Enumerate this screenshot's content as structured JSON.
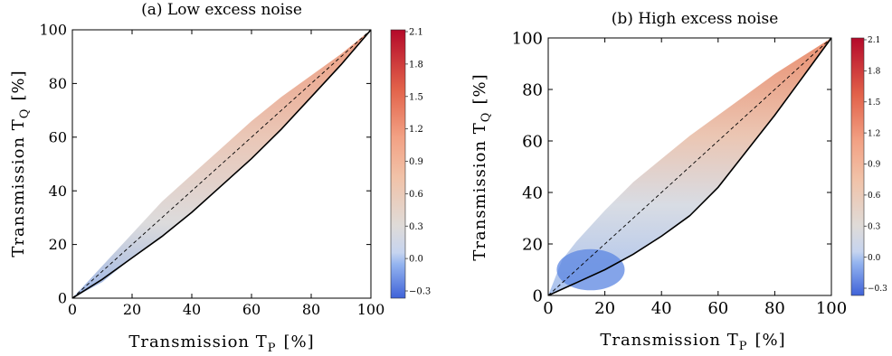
{
  "chart_data": [
    {
      "type": "heatmap",
      "title": "(a) Low excess noise",
      "xlabel": "Transmission T",
      "xlabel_sub": "P",
      "xlabel_unit": "[%]",
      "ylabel": "Transmission T",
      "ylabel_sub": "Q",
      "ylabel_unit": "[%]",
      "xlim": [
        0,
        100
      ],
      "ylim": [
        0,
        100
      ],
      "x_ticks": [
        0,
        20,
        40,
        60,
        80,
        100
      ],
      "y_ticks": [
        0,
        20,
        40,
        60,
        80,
        100
      ],
      "grid": false,
      "diagonal_dashed": [
        [
          0,
          0
        ],
        [
          100,
          100
        ]
      ],
      "boundary_curve": [
        [
          0,
          0
        ],
        [
          10,
          7
        ],
        [
          20,
          15
        ],
        [
          30,
          23
        ],
        [
          40,
          32
        ],
        [
          50,
          42
        ],
        [
          60,
          52
        ],
        [
          70,
          63
        ],
        [
          80,
          75
        ],
        [
          90,
          87
        ],
        [
          100,
          100
        ]
      ],
      "region_upper": [
        [
          0,
          0
        ],
        [
          10,
          12
        ],
        [
          20,
          24
        ],
        [
          30,
          36
        ],
        [
          40,
          46
        ],
        [
          50,
          56
        ],
        [
          60,
          66
        ],
        [
          70,
          75
        ],
        [
          80,
          83
        ],
        [
          90,
          91
        ],
        [
          100,
          100
        ]
      ],
      "region_lower": [
        [
          0,
          0
        ],
        [
          10,
          6
        ],
        [
          20,
          15
        ],
        [
          30,
          23
        ],
        [
          40,
          32
        ],
        [
          50,
          42
        ],
        [
          60,
          52
        ],
        [
          70,
          63
        ],
        [
          80,
          75
        ],
        [
          90,
          87
        ],
        [
          100,
          100
        ]
      ],
      "colorbar": {
        "ticks": [
          "2.1",
          "1.8",
          "1.5",
          "1.2",
          "0.9",
          "0.6",
          "0.3",
          "0.0",
          "−0.3"
        ],
        "range": [
          -0.3,
          2.1
        ]
      }
    },
    {
      "type": "heatmap",
      "title": "(b) High excess noise",
      "xlabel": "Transmission T",
      "xlabel_sub": "P",
      "xlabel_unit": "[%]",
      "ylabel": "Transmission T",
      "ylabel_sub": "Q",
      "ylabel_unit": "[%]",
      "xlim": [
        0,
        100
      ],
      "ylim": [
        0,
        100
      ],
      "x_ticks": [
        0,
        20,
        40,
        60,
        80,
        100
      ],
      "y_ticks": [
        0,
        20,
        40,
        60,
        80,
        100
      ],
      "grid": false,
      "diagonal_dashed": [
        [
          0,
          0
        ],
        [
          100,
          100
        ]
      ],
      "boundary_curve": [
        [
          0,
          0
        ],
        [
          10,
          5
        ],
        [
          20,
          10
        ],
        [
          30,
          16
        ],
        [
          40,
          23
        ],
        [
          50,
          31
        ],
        [
          60,
          42
        ],
        [
          70,
          56
        ],
        [
          80,
          70
        ],
        [
          90,
          85
        ],
        [
          100,
          100
        ]
      ],
      "region_upper": [
        [
          0,
          0
        ],
        [
          5,
          14
        ],
        [
          10,
          21
        ],
        [
          20,
          33
        ],
        [
          30,
          44
        ],
        [
          40,
          53
        ],
        [
          50,
          62
        ],
        [
          60,
          70
        ],
        [
          70,
          78
        ],
        [
          80,
          86
        ],
        [
          90,
          93
        ],
        [
          100,
          100
        ]
      ],
      "region_lower": [
        [
          0,
          0
        ],
        [
          10,
          5
        ],
        [
          20,
          10
        ],
        [
          30,
          16
        ],
        [
          40,
          23
        ],
        [
          50,
          31
        ],
        [
          60,
          42
        ],
        [
          70,
          56
        ],
        [
          80,
          70
        ],
        [
          90,
          85
        ],
        [
          100,
          100
        ]
      ],
      "negative_region_ellipse": {
        "center": [
          15,
          10
        ],
        "radii": [
          12,
          8
        ]
      },
      "colorbar": {
        "ticks": [
          "2.1",
          "1.8",
          "1.5",
          "1.2",
          "0.9",
          "0.6",
          "0.3",
          "0.0",
          "−0.3"
        ],
        "range": [
          -0.3,
          2.1
        ]
      }
    }
  ]
}
